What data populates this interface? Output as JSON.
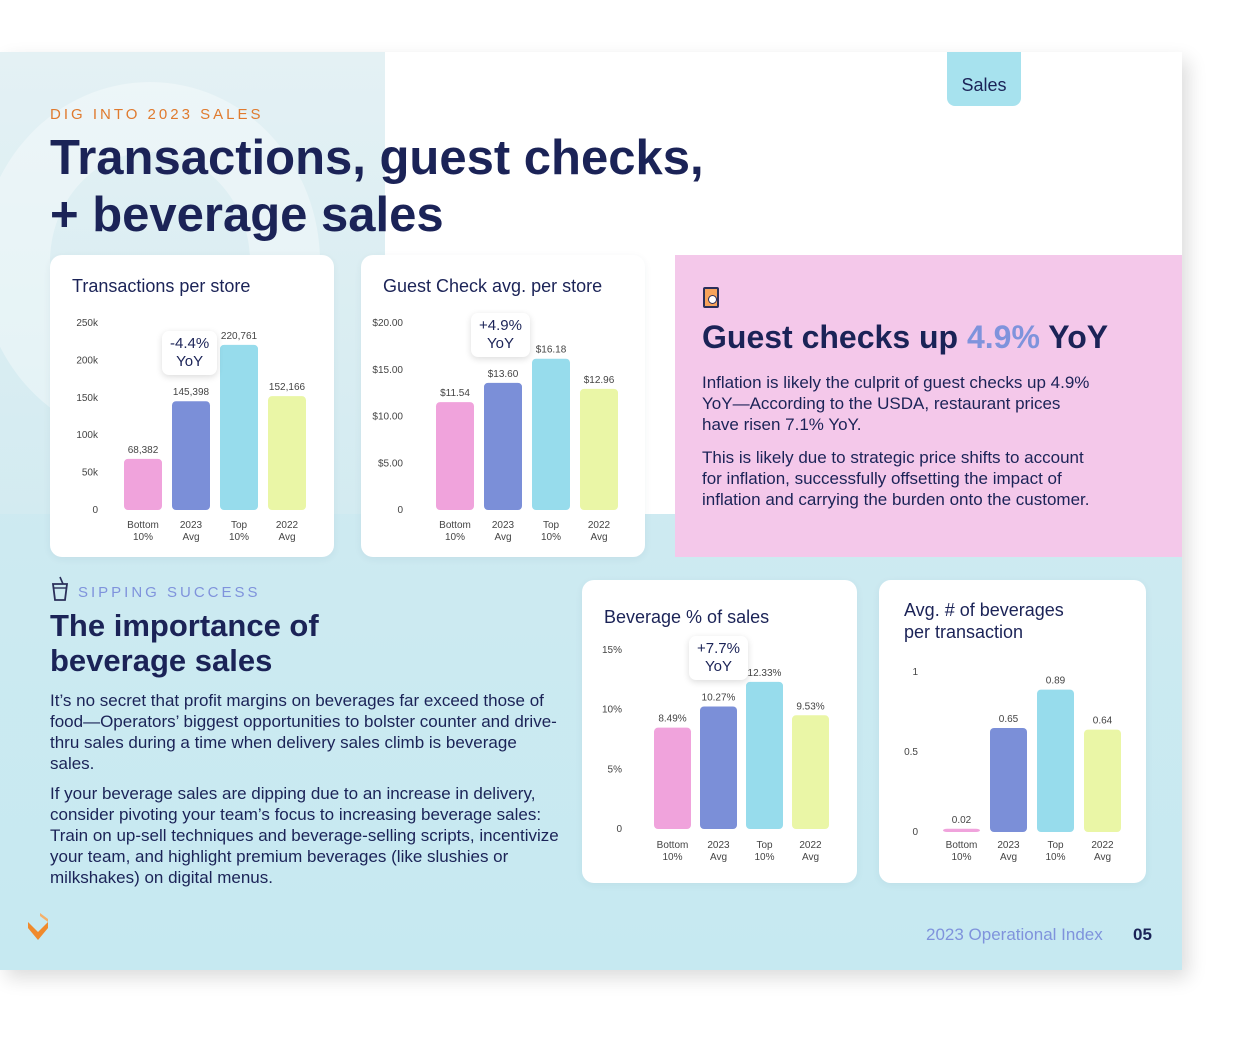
{
  "tab": "Sales",
  "header": {
    "eyebrow": "DIG INTO 2023 SALES",
    "title": "Transactions, guest checks,\n+ beverage sales"
  },
  "colors": {
    "pink": "#f0a3dc",
    "blue": "#7b8fd8",
    "cyan": "#97dcec",
    "yellow": "#eaf6a6",
    "navy": "#1b2357",
    "orange": "#e07a2e",
    "periwinkle": "#7f93dc"
  },
  "chart_data": [
    {
      "type": "bar",
      "title": "Transactions per store",
      "categories": [
        "Bottom 10%",
        "2023 Avg",
        "Top 10%",
        "2022 Avg"
      ],
      "category_lines": [
        [
          "Bottom",
          "10%"
        ],
        [
          "2023",
          "Avg"
        ],
        [
          "Top",
          "10%"
        ],
        [
          "2022",
          "Avg"
        ]
      ],
      "values": [
        68382,
        145398,
        220761,
        152166
      ],
      "value_labels": [
        "68,382",
        "145,398",
        "220,761",
        "152,166"
      ],
      "yticks": [
        "0",
        "50k",
        "100k",
        "150k",
        "200k",
        "250k"
      ],
      "ylim": [
        0,
        250000
      ],
      "annotation": [
        "-4.4%",
        "YoY"
      ]
    },
    {
      "type": "bar",
      "title": "Guest Check avg. per store",
      "categories": [
        "Bottom 10%",
        "2023 Avg",
        "Top 10%",
        "2022 Avg"
      ],
      "category_lines": [
        [
          "Bottom",
          "10%"
        ],
        [
          "2023",
          "Avg"
        ],
        [
          "Top",
          "10%"
        ],
        [
          "2022",
          "Avg"
        ]
      ],
      "values": [
        11.54,
        13.6,
        16.18,
        12.96
      ],
      "value_labels": [
        "$11.54",
        "$13.60",
        "$16.18",
        "$12.96"
      ],
      "yticks": [
        "0",
        "$5.00",
        "$10.00",
        "$15.00",
        "$20.00"
      ],
      "ylim": [
        0,
        20
      ],
      "annotation": [
        "+4.9%",
        "YoY"
      ]
    },
    {
      "type": "bar",
      "title": "Beverage % of sales",
      "categories": [
        "Bottom 10%",
        "2023 Avg",
        "Top 10%",
        "2022 Avg"
      ],
      "category_lines": [
        [
          "Bottom",
          "10%"
        ],
        [
          "2023",
          "Avg"
        ],
        [
          "Top",
          "10%"
        ],
        [
          "2022",
          "Avg"
        ]
      ],
      "values": [
        8.49,
        10.27,
        12.33,
        9.53
      ],
      "value_labels": [
        "8.49%",
        "10.27%",
        "12.33%",
        "9.53%"
      ],
      "yticks": [
        "0",
        "5%",
        "10%",
        "15%"
      ],
      "ylim": [
        0,
        15
      ],
      "annotation": [
        "+7.7%",
        "YoY"
      ]
    },
    {
      "type": "bar",
      "title": "Avg. # of beverages\nper transaction",
      "categories": [
        "Bottom 10%",
        "2023 Avg",
        "Top 10%",
        "2022 Avg"
      ],
      "category_lines": [
        [
          "Bottom",
          "10%"
        ],
        [
          "2023",
          "Avg"
        ],
        [
          "Top",
          "10%"
        ],
        [
          "2022",
          "Avg"
        ]
      ],
      "values": [
        0.02,
        0.65,
        0.89,
        0.64
      ],
      "value_labels": [
        "0.02",
        "0.65",
        "0.89",
        "0.64"
      ],
      "yticks": [
        "0",
        "0.5",
        "1"
      ],
      "ylim": [
        0,
        1
      ],
      "annotation": null
    }
  ],
  "guest_panel": {
    "heading_before": "Guest checks up ",
    "heading_accent": "4.9%",
    "heading_after": " YoY",
    "p1": "Inflation is likely the culprit of guest checks up 4.9% YoY—According to the USDA, restaurant prices have risen 7.1% YoY.",
    "p2": "This is likely due to strategic price shifts to account for inflation, successfully offsetting the impact of inflation and carrying the burden onto the customer."
  },
  "beverage_section": {
    "eyebrow": "SIPPING SUCCESS",
    "title": "The importance of\nbeverage sales",
    "p1": "It’s no secret that profit margins on beverages far exceed those of food—Operators’ biggest opportunities to bolster counter and drive-thru sales during a time when delivery sales climb is beverage sales.",
    "p2": "If your beverage sales are dipping due to an increase in delivery, consider pivoting your team’s focus to increasing beverage sales: Train on up-sell techniques and beverage-selling scripts, incentivize your team, and highlight premium beverages (like slushies or milkshakes) on digital menus."
  },
  "footer": {
    "title": "2023 Operational Index",
    "page_number": "05"
  }
}
